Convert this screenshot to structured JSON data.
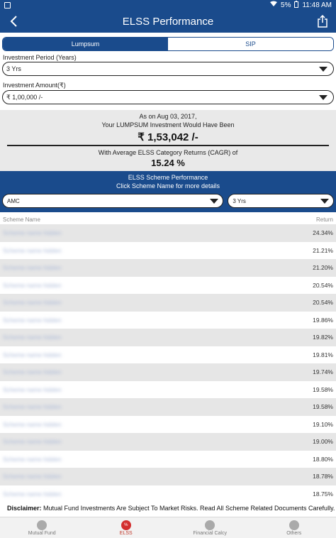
{
  "status_bar": {
    "battery": "5%",
    "time": "11:48 AM"
  },
  "appbar": {
    "title": "ELSS Performance"
  },
  "tabs": [
    {
      "label": "Lumpsum",
      "active": true
    },
    {
      "label": "SIP",
      "active": false
    }
  ],
  "investment_period": {
    "label": "Investment Period (Years)",
    "value": "3 Yrs"
  },
  "investment_amount": {
    "label": "Investment Amount(₹)",
    "value": "₹ 1,00,000 /-"
  },
  "result": {
    "date_line": "As on Aug 03, 2017,",
    "desc_line": "Your LUMPSUM Investment Would Have Been",
    "amount": "₹ 1,53,042 /-",
    "cagr_line": "With Average ELSS Category Returns (CAGR) of",
    "cagr_value": "15.24 %"
  },
  "performance": {
    "title": "ELSS Scheme Performance",
    "subtitle": "Click Scheme Name for more details",
    "amc_filter": "AMC",
    "period_filter": "3 Yrs"
  },
  "table": {
    "col_name": "Scheme Name",
    "col_return": "Return",
    "rows": [
      {
        "name": "Scheme name hidden",
        "return": "24.34%"
      },
      {
        "name": "Scheme name hidden",
        "return": "21.21%"
      },
      {
        "name": "Scheme name hidden",
        "return": "21.20%"
      },
      {
        "name": "Scheme name hidden",
        "return": "20.54%"
      },
      {
        "name": "Scheme name hidden",
        "return": "20.54%"
      },
      {
        "name": "Scheme name hidden",
        "return": "19.86%"
      },
      {
        "name": "Scheme name hidden",
        "return": "19.82%"
      },
      {
        "name": "Scheme name hidden",
        "return": "19.81%"
      },
      {
        "name": "Scheme name hidden",
        "return": "19.74%"
      },
      {
        "name": "Scheme name hidden",
        "return": "19.58%"
      },
      {
        "name": "Scheme name hidden",
        "return": "19.58%"
      },
      {
        "name": "Scheme name hidden",
        "return": "19.10%"
      },
      {
        "name": "Scheme name hidden",
        "return": "19.00%"
      },
      {
        "name": "Scheme name hidden",
        "return": "18.80%"
      },
      {
        "name": "Scheme name hidden",
        "return": "18.78%"
      },
      {
        "name": "Scheme name hidden",
        "return": "18.75%"
      }
    ]
  },
  "disclaimer": {
    "label": "Disclaimer:",
    "text": "Mutual Fund Investments Are Subject To Market Risks. Read All Scheme Related Documents Carefully."
  },
  "bottom_nav": [
    {
      "label": "Mutual Fund",
      "icon": "mutual-fund-icon",
      "active": false
    },
    {
      "label": "ELSS",
      "icon": "elss-percent-icon",
      "active": true
    },
    {
      "label": "Financial Calcy",
      "icon": "calculator-icon",
      "active": false
    },
    {
      "label": "Others",
      "icon": "person-icon",
      "active": false
    }
  ],
  "colors": {
    "primary": "#1a4b8c",
    "active_nav": "#d32f2f"
  }
}
